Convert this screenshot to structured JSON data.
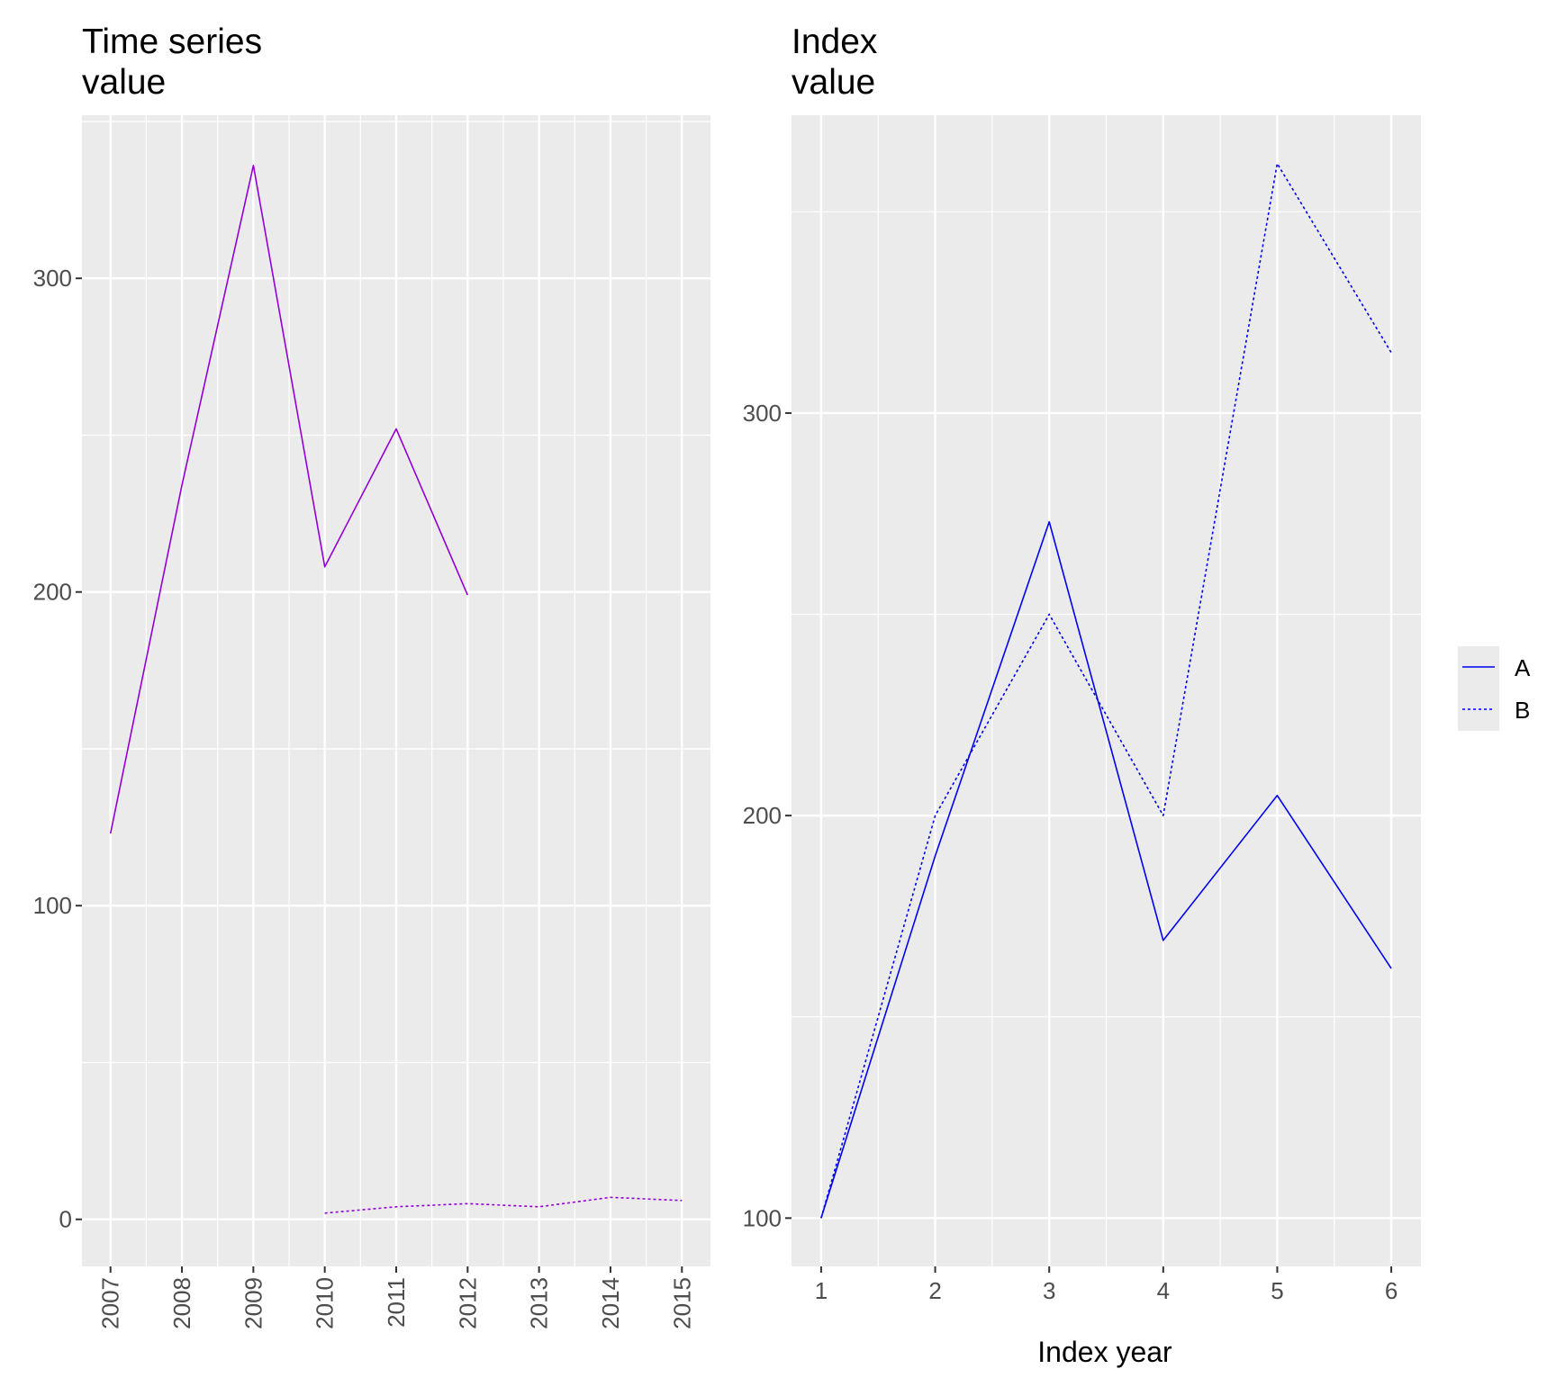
{
  "chart_data": [
    {
      "type": "line",
      "title": [
        "Time series",
        "value"
      ],
      "xlabel": "",
      "ylabel": "",
      "x": [
        2007,
        2008,
        2009,
        2010,
        2011,
        2012,
        2013,
        2014,
        2015
      ],
      "x_tick_labels": [
        "2007",
        "2008",
        "2009",
        "2010",
        "2011",
        "2012",
        "2013",
        "2014",
        "2015"
      ],
      "y_ticks": [
        0,
        100,
        200,
        300
      ],
      "y_tick_labels": [
        "0",
        "100",
        "200",
        "300"
      ],
      "xlim": [
        2006.6,
        2015.4
      ],
      "ylim": [
        -15,
        352
      ],
      "grid": true,
      "color": "#9400d3",
      "series": [
        {
          "x": [
            2007,
            2008,
            2009,
            2010,
            2011,
            2012
          ],
          "values": [
            123,
            234,
            336,
            208,
            252,
            199
          ],
          "linestyle": "solid"
        },
        {
          "x": [
            2010,
            2011,
            2012,
            2013,
            2014,
            2015
          ],
          "values": [
            2,
            4,
            5,
            4,
            7,
            6
          ],
          "linestyle": "dotted"
        }
      ]
    },
    {
      "type": "line",
      "title": [
        "Index",
        "value"
      ],
      "xlabel": "Index year",
      "ylabel": "",
      "x": [
        1,
        2,
        3,
        4,
        5,
        6
      ],
      "x_tick_labels": [
        "1",
        "2",
        "3",
        "4",
        "5",
        "6"
      ],
      "y_ticks": [
        100,
        200,
        300
      ],
      "y_tick_labels": [
        "100",
        "200",
        "300"
      ],
      "xlim": [
        0.74,
        6.26
      ],
      "ylim": [
        88,
        374
      ],
      "grid": true,
      "color": "#0000ee",
      "legend": {
        "position": "right",
        "entries": [
          "A",
          "B"
        ]
      },
      "series": [
        {
          "name": "A",
          "x": [
            1,
            2,
            3,
            4,
            5,
            6
          ],
          "values": [
            100,
            190,
            273,
            169,
            205,
            162
          ],
          "linestyle": "solid"
        },
        {
          "name": "B",
          "x": [
            1,
            2,
            3,
            4,
            5,
            6
          ],
          "values": [
            100,
            200,
            250,
            200,
            362,
            315
          ],
          "linestyle": "dotted"
        }
      ]
    }
  ]
}
